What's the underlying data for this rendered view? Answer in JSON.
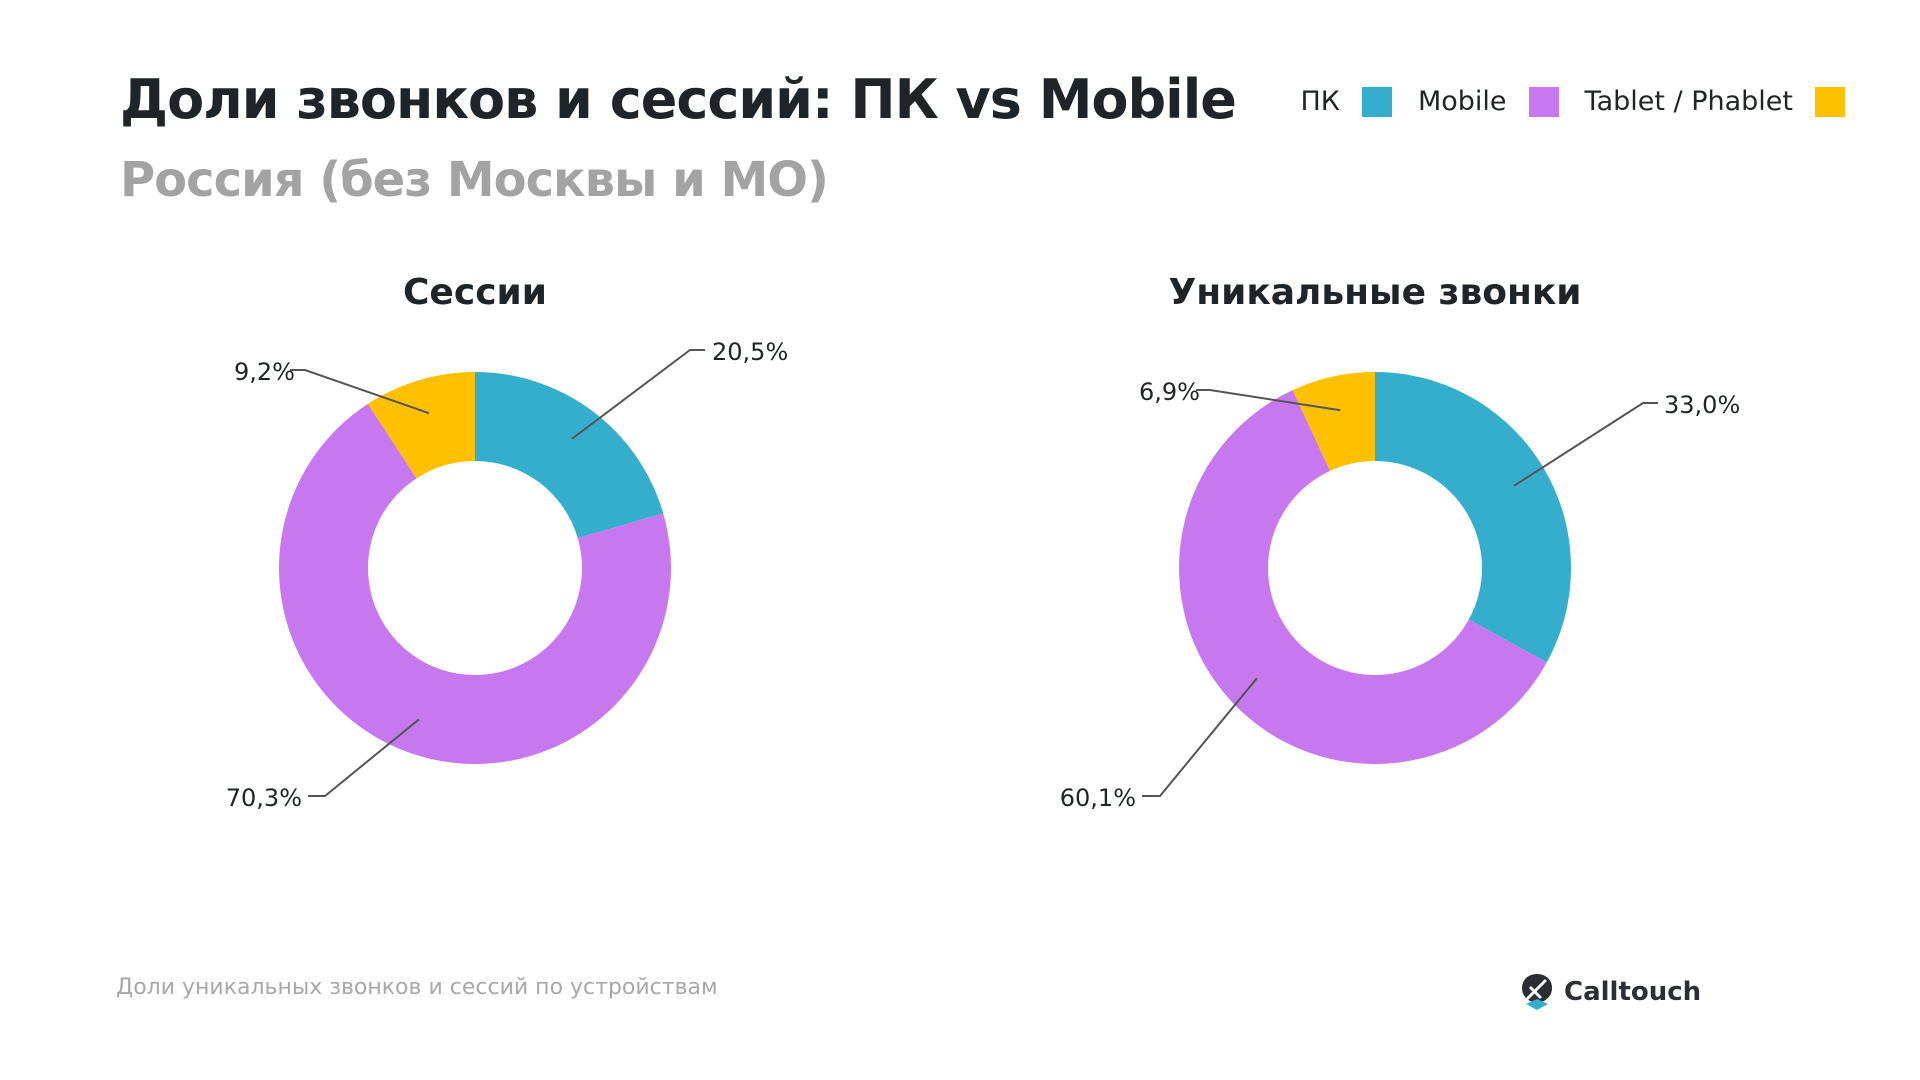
{
  "header": {
    "title": "Доли звонков и сессий: ПК vs Mobile",
    "subtitle": "Россия (без Москвы и МО)"
  },
  "legend": [
    {
      "label": "ПК",
      "color": "#35AECE"
    },
    {
      "label": "Mobile",
      "color": "#C878EE"
    },
    {
      "label": "Tablet / Phablet",
      "color": "#FFC000"
    }
  ],
  "chart_data": [
    {
      "type": "pie",
      "title": "Сессии",
      "categories": [
        "ПК",
        "Mobile",
        "Tablet / Phablet"
      ],
      "values": [
        20.5,
        70.3,
        9.2
      ],
      "labels": [
        "20,5%",
        "70,3%",
        "9,2%"
      ],
      "colors": [
        "#35AECE",
        "#C878EE",
        "#FFC000"
      ]
    },
    {
      "type": "pie",
      "title": "Уникальные звонки",
      "categories": [
        "ПК",
        "Mobile",
        "Tablet / Phablet"
      ],
      "values": [
        33.0,
        60.1,
        6.9
      ],
      "labels": [
        "33,0%",
        "60,1%",
        "6,9%"
      ],
      "colors": [
        "#35AECE",
        "#C878EE",
        "#FFC000"
      ]
    }
  ],
  "footer": {
    "caption": "Доли уникальных звонков и сессий по устройствам",
    "brand": "Calltouch"
  }
}
